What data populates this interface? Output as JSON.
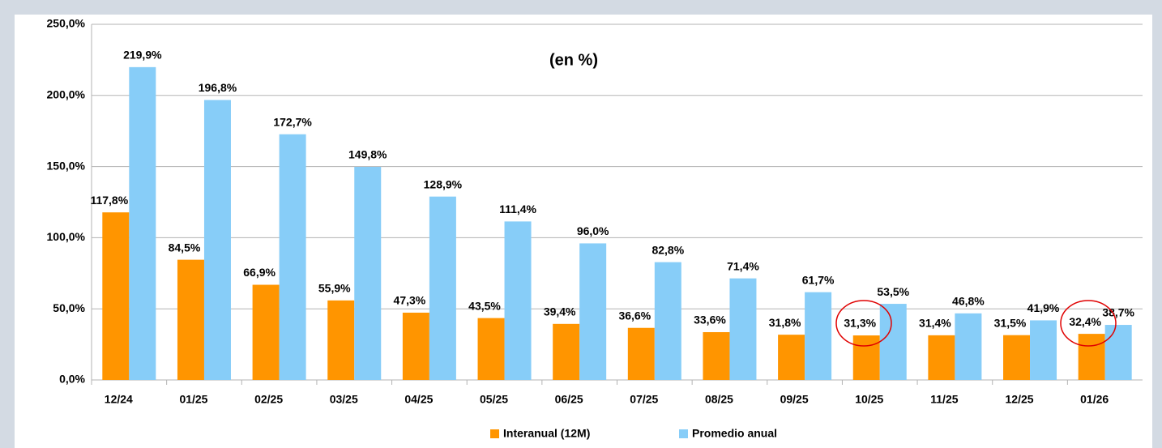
{
  "chart_data": {
    "type": "bar",
    "title": "(en %)",
    "categories": [
      "12/24",
      "01/25",
      "02/25",
      "03/25",
      "04/25",
      "05/25",
      "06/25",
      "07/25",
      "08/25",
      "09/25",
      "10/25",
      "11/25",
      "12/25",
      "01/26"
    ],
    "series": [
      {
        "name": "Interanual (12M)",
        "color": "#ff9500",
        "values": [
          117.8,
          84.5,
          66.9,
          55.9,
          47.3,
          43.5,
          39.4,
          36.6,
          33.6,
          31.8,
          31.3,
          31.4,
          31.5,
          32.4
        ],
        "value_labels": [
          "117,8%",
          "84,5%",
          "66,9%",
          "55,9%",
          "47,3%",
          "43,5%",
          "39,4%",
          "36,6%",
          "33,6%",
          "31,8%",
          "31,3%",
          "31,4%",
          "31,5%",
          "32,4%"
        ]
      },
      {
        "name": "Promedio anual",
        "color": "#87cdf8",
        "values": [
          219.9,
          196.8,
          172.7,
          149.8,
          128.9,
          111.4,
          96.0,
          82.8,
          71.4,
          61.7,
          53.5,
          46.8,
          41.9,
          38.7
        ],
        "value_labels": [
          "219,9%",
          "196,8%",
          "172,7%",
          "149,8%",
          "128,9%",
          "111,4%",
          "96,0%",
          "82,8%",
          "71,4%",
          "61,7%",
          "53,5%",
          "46,8%",
          "41,9%",
          "38,7%"
        ]
      }
    ],
    "ylim": [
      0,
      250
    ],
    "yticks": [
      {
        "value": 0,
        "label": "0,0%"
      },
      {
        "value": 50,
        "label": "50,0%"
      },
      {
        "value": 100,
        "label": "100,0%"
      },
      {
        "value": 150,
        "label": "150,0%"
      },
      {
        "value": 200,
        "label": "200,0%"
      },
      {
        "value": 250,
        "label": "250,0%"
      }
    ],
    "grid": true,
    "legend": "bottom"
  }
}
